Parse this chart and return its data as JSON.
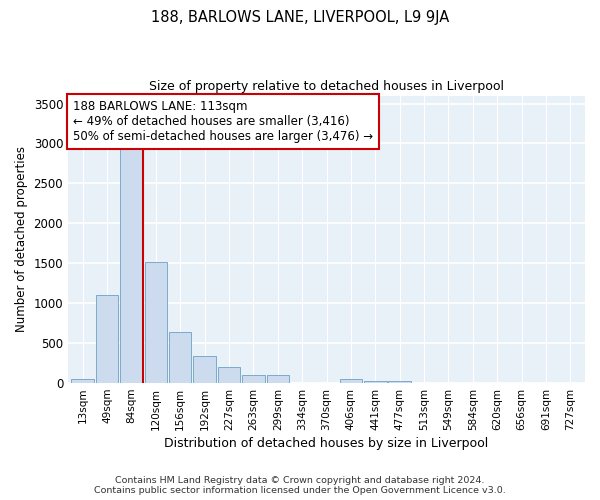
{
  "title": "188, BARLOWS LANE, LIVERPOOL, L9 9JA",
  "subtitle": "Size of property relative to detached houses in Liverpool",
  "xlabel": "Distribution of detached houses by size in Liverpool",
  "ylabel": "Number of detached properties",
  "bar_labels": [
    "13sqm",
    "49sqm",
    "84sqm",
    "120sqm",
    "156sqm",
    "192sqm",
    "227sqm",
    "263sqm",
    "299sqm",
    "334sqm",
    "370sqm",
    "406sqm",
    "441sqm",
    "477sqm",
    "513sqm",
    "549sqm",
    "584sqm",
    "620sqm",
    "656sqm",
    "691sqm",
    "727sqm"
  ],
  "bar_heights": [
    55,
    1105,
    2930,
    1510,
    645,
    335,
    200,
    100,
    100,
    0,
    0,
    45,
    30,
    20,
    0,
    0,
    0,
    0,
    0,
    0,
    0
  ],
  "bar_color": "#ccdcee",
  "bar_edge_color": "#7aaacb",
  "vline_color": "#cc0000",
  "annotation_text": "188 BARLOWS LANE: 113sqm\n← 49% of detached houses are smaller (3,416)\n50% of semi-detached houses are larger (3,476) →",
  "annotation_box_color": "white",
  "annotation_box_edge": "#cc0000",
  "ylim": [
    0,
    3600
  ],
  "yticks": [
    0,
    500,
    1000,
    1500,
    2000,
    2500,
    3000,
    3500
  ],
  "background_color": "#ffffff",
  "plot_background": "#e8f0f8",
  "grid_color": "white",
  "footer_line1": "Contains HM Land Registry data © Crown copyright and database right 2024.",
  "footer_line2": "Contains public sector information licensed under the Open Government Licence v3.0."
}
